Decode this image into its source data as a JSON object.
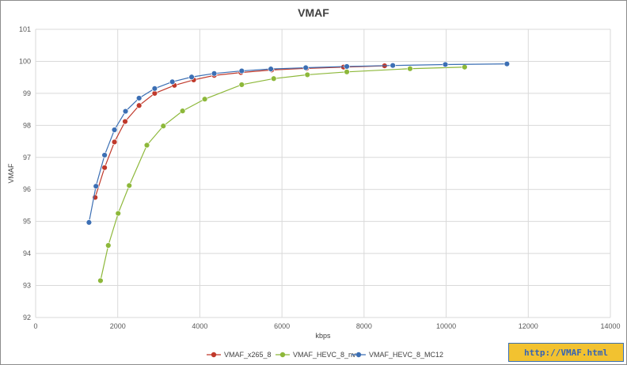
{
  "chart_data": {
    "type": "line",
    "title": "VMAF",
    "xlabel": "kbps",
    "ylabel": "VMAF",
    "xlim": [
      0,
      14000
    ],
    "ylim": [
      92,
      101
    ],
    "xticks": [
      0,
      2000,
      4000,
      6000,
      8000,
      10000,
      12000,
      14000
    ],
    "yticks": [
      92,
      93,
      94,
      95,
      96,
      97,
      98,
      99,
      100,
      101
    ],
    "grid": true,
    "legend": "bottom",
    "series": [
      {
        "name": "VMAF_x265_8",
        "color": "#c0392b",
        "x": [
          1450,
          1680,
          1920,
          2180,
          2520,
          2900,
          3380,
          3850,
          4350,
          5000,
          5750,
          6600,
          7500,
          8500
        ],
        "y": [
          95.75,
          96.68,
          97.48,
          98.12,
          98.62,
          99.0,
          99.25,
          99.42,
          99.56,
          99.65,
          99.73,
          99.78,
          99.82,
          99.86
        ]
      },
      {
        "name": "VMAF_HEVC_8_nv",
        "color": "#8db83a",
        "x": [
          1580,
          1770,
          2010,
          2280,
          2710,
          3110,
          3580,
          4120,
          5020,
          5800,
          6620,
          7580,
          9120,
          10450
        ],
        "y": [
          93.15,
          94.25,
          95.25,
          96.12,
          97.38,
          97.98,
          98.45,
          98.82,
          99.27,
          99.46,
          99.58,
          99.67,
          99.77,
          99.82
        ]
      },
      {
        "name": "VMAF_HEVC_8_MC12",
        "color": "#3c6fb4",
        "x": [
          1300,
          1470,
          1680,
          1920,
          2190,
          2520,
          2900,
          3330,
          3800,
          4350,
          5020,
          5730,
          6580,
          7580,
          8700,
          9980,
          11480
        ],
        "y": [
          94.97,
          96.1,
          97.07,
          97.86,
          98.44,
          98.85,
          99.15,
          99.36,
          99.51,
          99.62,
          99.7,
          99.76,
          99.8,
          99.84,
          99.87,
          99.9,
          99.92
        ]
      }
    ]
  },
  "watermark": {
    "text": "http://VMAF.html"
  }
}
